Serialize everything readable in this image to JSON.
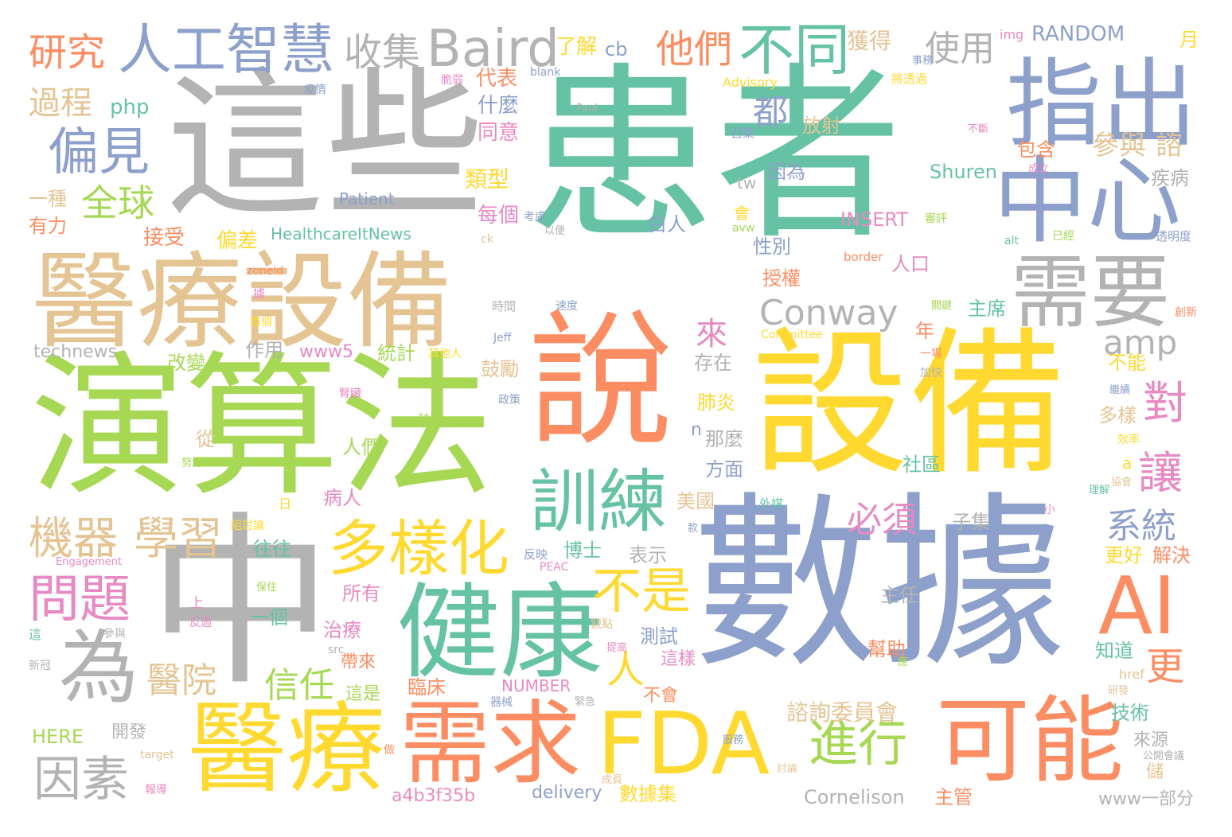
{
  "palette": {
    "green": "#66c2a5",
    "orange": "#fc8d62",
    "blue": "#8da0cb",
    "pink": "#e78ac3",
    "lime": "#a6d854",
    "yellow": "#ffd92f",
    "tan": "#e5c494",
    "gray": "#b3b3b3"
  },
  "words": [
    {
      "text": "患者",
      "color": "green"
    },
    {
      "text": "這些",
      "color": "gray"
    },
    {
      "text": "演算法",
      "color": "lime"
    },
    {
      "text": "說",
      "color": "orange"
    },
    {
      "text": "設備",
      "color": "yellow"
    },
    {
      "text": "數據",
      "color": "blue"
    },
    {
      "text": "中",
      "color": "gray"
    },
    {
      "text": "醫療設備",
      "color": "tan"
    },
    {
      "text": "指出",
      "color": "blue"
    },
    {
      "text": "中心",
      "color": "blue"
    },
    {
      "text": "需要",
      "color": "gray"
    },
    {
      "text": "健康",
      "color": "green"
    },
    {
      "text": "AI",
      "color": "orange"
    },
    {
      "text": "醫療",
      "color": "yellow"
    },
    {
      "text": "需求",
      "color": "orange"
    },
    {
      "text": "FDA",
      "color": "yellow"
    },
    {
      "text": "可能",
      "color": "orange"
    },
    {
      "text": "人工智慧",
      "color": "blue"
    },
    {
      "text": "Baird",
      "color": "gray"
    },
    {
      "text": "訓練",
      "color": "green"
    },
    {
      "text": "多樣化",
      "color": "yellow"
    },
    {
      "text": "為",
      "color": "gray"
    },
    {
      "text": "不同",
      "color": "green"
    },
    {
      "text": "偏見",
      "color": "blue"
    },
    {
      "text": "Conway",
      "color": "gray"
    },
    {
      "text": "進行",
      "color": "lime"
    },
    {
      "text": "不是",
      "color": "yellow"
    },
    {
      "text": "問題",
      "color": "pink"
    },
    {
      "text": "機器",
      "color": "tan"
    },
    {
      "text": "學習",
      "color": "tan"
    },
    {
      "text": "因素",
      "color": "gray"
    },
    {
      "text": "研究",
      "color": "orange"
    },
    {
      "text": "收集",
      "color": "gray"
    },
    {
      "text": "他們",
      "color": "orange"
    },
    {
      "text": "使用",
      "color": "gray"
    },
    {
      "text": "全球",
      "color": "lime"
    },
    {
      "text": "過程",
      "color": "tan"
    },
    {
      "text": "對",
      "color": "pink"
    },
    {
      "text": "讓",
      "color": "pink"
    },
    {
      "text": "系統",
      "color": "blue"
    },
    {
      "text": "必須",
      "color": "pink"
    },
    {
      "text": "人",
      "color": "yellow"
    },
    {
      "text": "更",
      "color": "orange"
    },
    {
      "text": "信任",
      "color": "lime"
    },
    {
      "text": "醫院",
      "color": "tan"
    },
    {
      "text": "amp",
      "color": "gray"
    },
    {
      "text": "都",
      "color": "blue"
    },
    {
      "text": "來",
      "color": "pink"
    },
    {
      "text": "參與",
      "color": "tan"
    },
    {
      "text": "諮",
      "color": "tan"
    },
    {
      "text": "RANDOM",
      "color": "blue"
    },
    {
      "text": "獲得",
      "color": "tan"
    },
    {
      "text": "了解",
      "color": "yellow"
    },
    {
      "text": "cb",
      "color": "blue"
    },
    {
      "text": "月",
      "color": "yellow"
    },
    {
      "text": "img",
      "color": "pink"
    },
    {
      "text": "php",
      "color": "green"
    },
    {
      "text": "代表",
      "color": "orange"
    },
    {
      "text": "什麼",
      "color": "blue"
    },
    {
      "text": "同意",
      "color": "pink"
    },
    {
      "text": "類型",
      "color": "yellow"
    },
    {
      "text": "每個",
      "color": "pink"
    },
    {
      "text": "接受",
      "color": "orange"
    },
    {
      "text": "偏差",
      "color": "yellow"
    },
    {
      "text": "一種",
      "color": "tan"
    },
    {
      "text": "有力",
      "color": "orange"
    },
    {
      "text": "HealthcareItNews",
      "color": "green"
    },
    {
      "text": "Patient",
      "color": "blue"
    },
    {
      "text": "Shuren",
      "color": "green"
    },
    {
      "text": "INSERT",
      "color": "pink"
    },
    {
      "text": "包含",
      "color": "orange"
    },
    {
      "text": "疾病",
      "color": "gray"
    },
    {
      "text": "放射",
      "color": "tan"
    },
    {
      "text": "因為",
      "color": "blue"
    },
    {
      "text": "白人",
      "color": "blue"
    },
    {
      "text": "性別",
      "color": "blue"
    },
    {
      "text": "授權",
      "color": "orange"
    },
    {
      "text": "人口",
      "color": "pink"
    },
    {
      "text": "主席",
      "color": "green"
    },
    {
      "text": "technews",
      "color": "gray"
    },
    {
      "text": "作用",
      "color": "gray"
    },
    {
      "text": "www5",
      "color": "pink"
    },
    {
      "text": "統計",
      "color": "lime"
    },
    {
      "text": "改變",
      "color": "lime"
    },
    {
      "text": "存在",
      "color": "gray"
    },
    {
      "text": "鼓勵",
      "color": "tan"
    },
    {
      "text": "年",
      "color": "orange"
    },
    {
      "text": "不能",
      "color": "yellow"
    },
    {
      "text": "多樣",
      "color": "tan"
    },
    {
      "text": "肺炎",
      "color": "yellow"
    },
    {
      "text": "那麼",
      "color": "gray"
    },
    {
      "text": "n",
      "color": "blue"
    },
    {
      "text": "方面",
      "color": "blue"
    },
    {
      "text": "從",
      "color": "tan"
    },
    {
      "text": "人們",
      "color": "lime"
    },
    {
      "text": "病人",
      "color": "pink"
    },
    {
      "text": "美國",
      "color": "tan"
    },
    {
      "text": "社區",
      "color": "green"
    },
    {
      "text": "子集",
      "color": "gray"
    },
    {
      "text": "博士",
      "color": "green"
    },
    {
      "text": "表示",
      "color": "gray"
    },
    {
      "text": "往往",
      "color": "green"
    },
    {
      "text": "所有",
      "color": "pink"
    },
    {
      "text": "一個",
      "color": "green"
    },
    {
      "text": "主任",
      "color": "gray"
    },
    {
      "text": "更好",
      "color": "yellow"
    },
    {
      "text": "解決",
      "color": "orange"
    },
    {
      "text": "治療",
      "color": "pink"
    },
    {
      "text": "測試",
      "color": "blue"
    },
    {
      "text": "這樣",
      "color": "pink"
    },
    {
      "text": "帶來",
      "color": "orange"
    },
    {
      "text": "這是",
      "color": "lime"
    },
    {
      "text": "臨床",
      "color": "orange"
    },
    {
      "text": "NUMBER",
      "color": "pink"
    },
    {
      "text": "不會",
      "color": "orange"
    },
    {
      "text": "幫助",
      "color": "orange"
    },
    {
      "text": "知道",
      "color": "green"
    },
    {
      "text": "技術",
      "color": "green"
    },
    {
      "text": "諮詢委員會",
      "color": "tan"
    },
    {
      "text": "來源",
      "color": "gray"
    },
    {
      "text": "HERE",
      "color": "lime"
    },
    {
      "text": "開發",
      "color": "gray"
    },
    {
      "text": "a4b3f35b",
      "color": "pink"
    },
    {
      "text": "delivery",
      "color": "blue"
    },
    {
      "text": "數據集",
      "color": "yellow"
    },
    {
      "text": "Cornelison",
      "color": "gray"
    },
    {
      "text": "主管",
      "color": "orange"
    },
    {
      "text": "www一部分",
      "color": "gray"
    },
    {
      "text": "儲",
      "color": "tan"
    },
    {
      "text": "上",
      "color": "pink"
    },
    {
      "text": "日",
      "color": "yellow"
    },
    {
      "text": "tw",
      "color": "gray"
    },
    {
      "text": "會",
      "color": "yellow"
    },
    {
      "text": "a",
      "color": "yellow"
    },
    {
      "text": "href",
      "color": "tan"
    },
    {
      "text": "效率",
      "color": "yellow"
    },
    {
      "text": "Paul",
      "color": "gray"
    },
    {
      "text": "Advisory",
      "color": "yellow"
    },
    {
      "text": "blank",
      "color": "blue"
    },
    {
      "text": "事務",
      "color": "blue"
    },
    {
      "text": "將透過",
      "color": "yellow"
    },
    {
      "text": "疫情",
      "color": "blue"
    },
    {
      "text": "脆弱",
      "color": "pink"
    },
    {
      "text": "召集",
      "color": "blue"
    },
    {
      "text": "不斷",
      "color": "pink"
    },
    {
      "text": "成立",
      "color": "pink"
    },
    {
      "text": "考慮",
      "color": "blue"
    },
    {
      "text": "以便",
      "color": "gray"
    },
    {
      "text": "ck",
      "color": "tan"
    },
    {
      "text": "avw",
      "color": "lime"
    },
    {
      "text": "border",
      "color": "orange"
    },
    {
      "text": "alt",
      "color": "green"
    },
    {
      "text": "已經",
      "color": "lime"
    },
    {
      "text": "透明度",
      "color": "blue"
    },
    {
      "text": "審評",
      "color": "lime"
    },
    {
      "text": "zoneid",
      "color": "orange"
    },
    {
      "text": "據",
      "color": "pink"
    },
    {
      "text": "首個",
      "color": "yellow"
    },
    {
      "text": "時間",
      "color": "gray"
    },
    {
      "text": "速度",
      "color": "blue"
    },
    {
      "text": "Jeff",
      "color": "blue"
    },
    {
      "text": "Committee",
      "color": "yellow"
    },
    {
      "text": "關鍵",
      "color": "lime"
    },
    {
      "text": "創新",
      "color": "orange"
    },
    {
      "text": "一場",
      "color": "orange"
    },
    {
      "text": "其他人",
      "color": "yellow"
    },
    {
      "text": "加快",
      "color": "gray"
    },
    {
      "text": "繼續",
      "color": "blue"
    },
    {
      "text": "腎臟",
      "color": "pink"
    },
    {
      "text": "政策",
      "color": "blue"
    },
    {
      "text": "缺乏",
      "color": "lime"
    },
    {
      "text": "努力",
      "color": "lime"
    },
    {
      "text": "理解",
      "color": "green"
    },
    {
      "text": "協會",
      "color": "tan"
    },
    {
      "text": "外媒",
      "color": "green"
    },
    {
      "text": "組討論",
      "color": "yellow"
    },
    {
      "text": "小",
      "color": "pink"
    },
    {
      "text": "款",
      "color": "blue"
    },
    {
      "text": "Engagement",
      "color": "pink"
    },
    {
      "text": "反映",
      "color": "blue"
    },
    {
      "text": "PEAC",
      "color": "pink"
    },
    {
      "text": "保住",
      "color": "lime"
    },
    {
      "text": "反過",
      "color": "pink"
    },
    {
      "text": "參與",
      "color": "gray"
    },
    {
      "text": "這",
      "color": "green"
    },
    {
      "text": "新冠",
      "color": "gray"
    },
    {
      "text": "src",
      "color": "gray"
    },
    {
      "text": "觀點",
      "color": "tan"
    },
    {
      "text": "提高",
      "color": "pink"
    },
    {
      "text": "應",
      "color": "lime"
    },
    {
      "text": "研發",
      "color": "tan"
    },
    {
      "text": "器械",
      "color": "blue"
    },
    {
      "text": "緊急",
      "color": "gray"
    },
    {
      "text": "做",
      "color": "orange"
    },
    {
      "text": "服務",
      "color": "blue"
    },
    {
      "text": "公開會議",
      "color": "gray"
    },
    {
      "text": "target",
      "color": "tan"
    },
    {
      "text": "報導",
      "color": "pink"
    },
    {
      "text": "成員",
      "color": "tan"
    },
    {
      "text": "討論",
      "color": "tan"
    }
  ]
}
